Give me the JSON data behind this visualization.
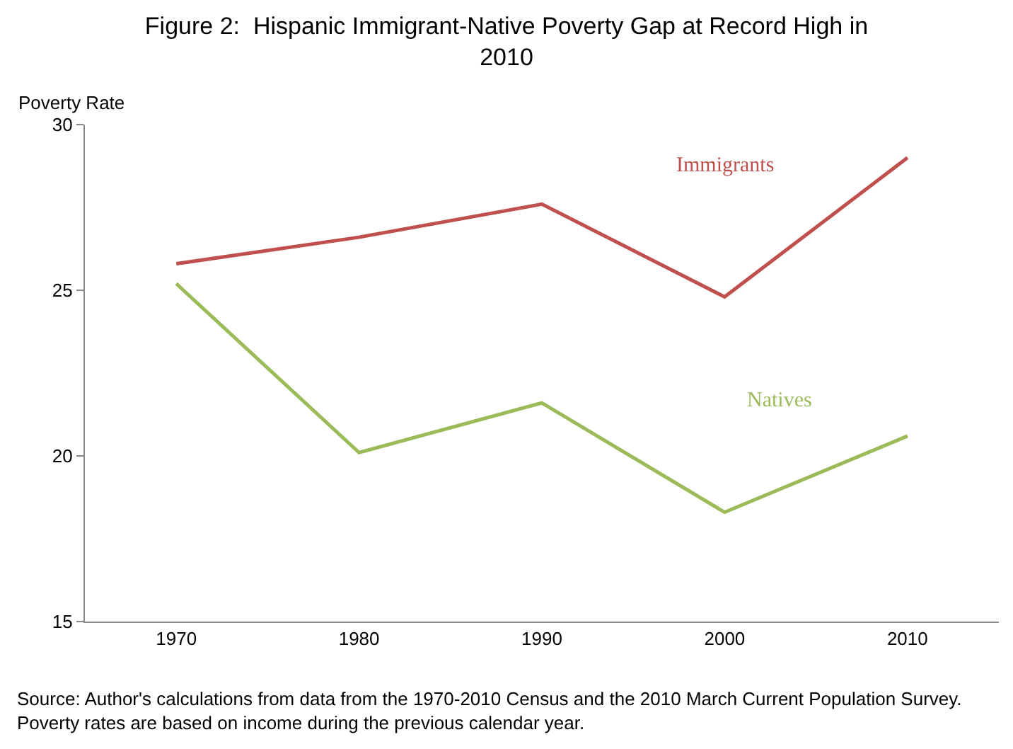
{
  "chart_data": {
    "type": "line",
    "title": "Figure 2:  Hispanic Immigrant-Native Poverty Gap at Record High in 2010",
    "ylabel": "Poverty Rate",
    "categories": [
      "1970",
      "1980",
      "1990",
      "2000",
      "2010"
    ],
    "series": [
      {
        "name": "Immigrants",
        "color": "#c0504d",
        "values": [
          25.8,
          26.6,
          27.6,
          24.8,
          29.0
        ]
      },
      {
        "name": "Natives",
        "color": "#9bbb59",
        "values": [
          25.2,
          20.1,
          21.6,
          18.3,
          20.6
        ]
      }
    ],
    "ylim": [
      15,
      30
    ],
    "yticks": [
      15,
      20,
      25,
      30
    ],
    "legend": false,
    "marker": "none",
    "line_style": "solid",
    "annotations": [
      "Source: Author's calculations from data from the 1970-2010 Census and the 2010 March Current Population Survey. Poverty rates are based on income during the previous calendar year."
    ]
  }
}
